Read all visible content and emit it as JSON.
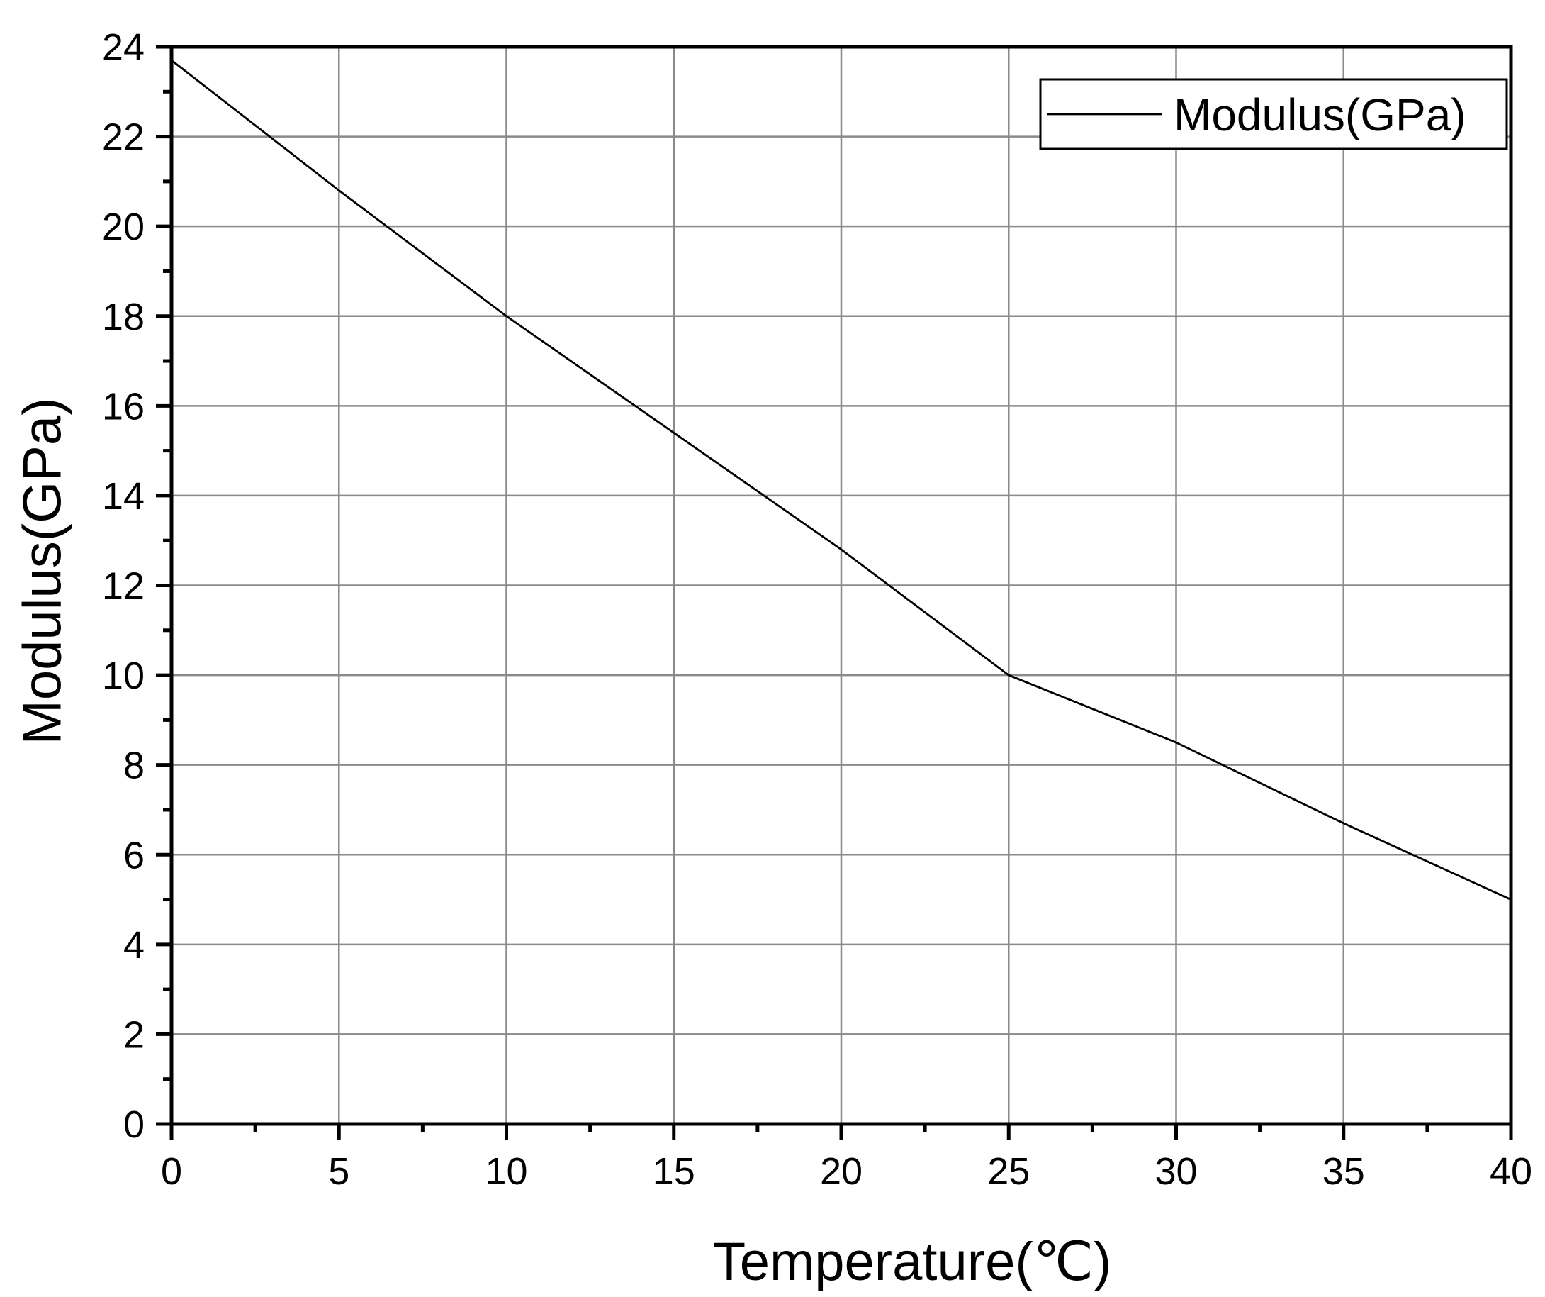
{
  "chart_data": {
    "type": "line",
    "xlabel": "Temperature(℃)",
    "ylabel": "Modulus(GPa)",
    "xlim": [
      0,
      40
    ],
    "ylim": [
      0,
      24
    ],
    "xticks": [
      0,
      5,
      10,
      15,
      20,
      25,
      30,
      35,
      40
    ],
    "yticks": [
      0,
      2,
      4,
      6,
      8,
      10,
      12,
      14,
      16,
      18,
      20,
      22,
      24
    ],
    "x_minor_step": 2.5,
    "y_minor_step": 1,
    "grid": true,
    "legend": {
      "position": "top-right",
      "entries": [
        "Modulus(GPa)"
      ]
    },
    "series": [
      {
        "name": "Modulus(GPa)",
        "color": "#000000",
        "x": [
          0,
          5,
          10,
          15,
          20,
          25,
          30,
          35,
          40
        ],
        "y": [
          23.7,
          20.8,
          18.0,
          15.4,
          12.8,
          10.0,
          8.5,
          6.7,
          5.0
        ]
      }
    ]
  }
}
